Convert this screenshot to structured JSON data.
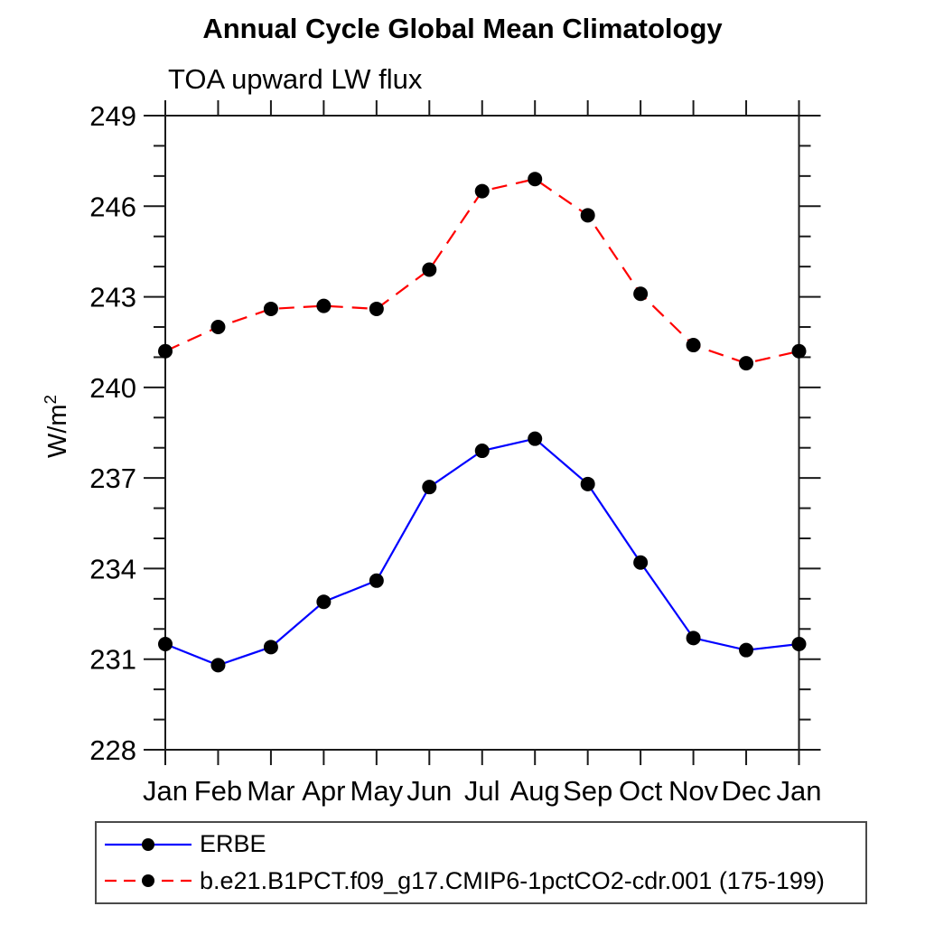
{
  "page": {
    "background": "#ffffff"
  },
  "chart_data": {
    "type": "line",
    "title": "Annual Cycle Global Mean Climatology",
    "subtitle": "TOA upward LW flux",
    "ylabel_base": "W/m",
    "ylabel_exponent": "2",
    "categories": [
      "Jan",
      "Feb",
      "Mar",
      "Apr",
      "May",
      "Jun",
      "Jul",
      "Aug",
      "Sep",
      "Oct",
      "Nov",
      "Dec",
      "Jan"
    ],
    "ylim": [
      228,
      249
    ],
    "ytick_major_step": 3,
    "ytick_minor_step": 1,
    "grid": false,
    "axis_color": "#1a1a1a",
    "marker": {
      "shape": "circle",
      "color": "#000000"
    },
    "legend_position": "bottom-left boxed",
    "series": [
      {
        "name": "ERBE",
        "color": "#0000ff",
        "line_style": "solid",
        "values": [
          231.5,
          230.8,
          231.4,
          232.9,
          233.6,
          236.7,
          237.9,
          238.3,
          236.8,
          234.2,
          231.7,
          231.3,
          231.5
        ]
      },
      {
        "name": "b.e21.B1PCT.f09_g17.CMIP6-1pctCO2-cdr.001 (175-199)",
        "color": "#ff0000",
        "line_style": "dashed",
        "values": [
          241.2,
          242.0,
          242.6,
          242.7,
          242.6,
          243.9,
          246.5,
          246.9,
          245.7,
          243.1,
          241.4,
          240.8,
          241.2
        ]
      }
    ]
  }
}
